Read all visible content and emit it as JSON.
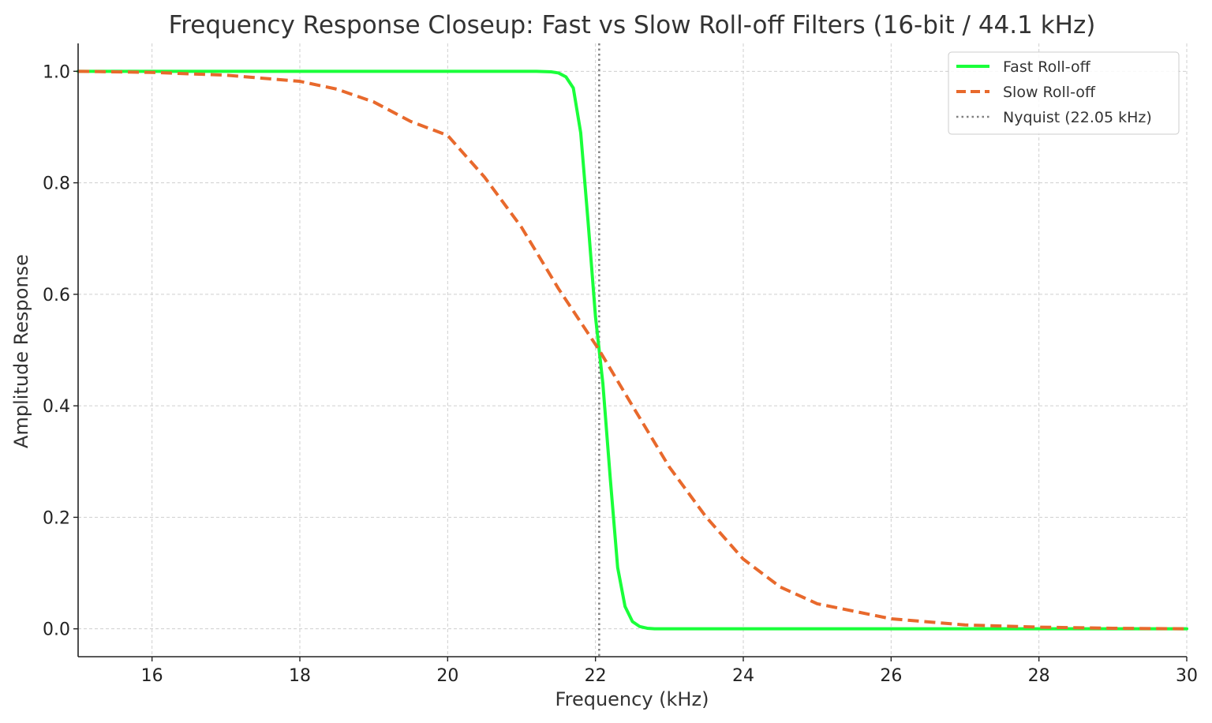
{
  "chart_data": {
    "type": "line",
    "title": "Frequency Response Closeup: Fast vs Slow Roll-off Filters (16-bit / 44.1 kHz)",
    "xlabel": "Frequency (kHz)",
    "ylabel": "Amplitude Response",
    "xlim": [
      15,
      30
    ],
    "ylim": [
      -0.05,
      1.05
    ],
    "xticks": [
      16,
      18,
      20,
      22,
      24,
      26,
      28,
      30
    ],
    "xtick_labels": [
      "16",
      "18",
      "20",
      "22",
      "24",
      "26",
      "28",
      "30"
    ],
    "yticks": [
      0.0,
      0.2,
      0.4,
      0.6,
      0.8,
      1.0
    ],
    "ytick_labels": [
      "0.0",
      "0.2",
      "0.4",
      "0.6",
      "0.8",
      "1.0"
    ],
    "grid": true,
    "legend_position": "top-right",
    "series": [
      {
        "name": "Fast Roll-off",
        "style": "solid",
        "color": "#1aff3a",
        "x": [
          15,
          16,
          17,
          18,
          19,
          20,
          20.5,
          21,
          21.2,
          21.4,
          21.5,
          21.6,
          21.7,
          21.8,
          21.9,
          22.0,
          22.05,
          22.1,
          22.2,
          22.3,
          22.4,
          22.5,
          22.6,
          22.7,
          22.8,
          23,
          24,
          25,
          26,
          27,
          28,
          29,
          30
        ],
        "y": [
          1.0,
          1.0,
          1.0,
          1.0,
          1.0,
          1.0,
          1.0,
          1.0,
          1.0,
          0.999,
          0.997,
          0.99,
          0.97,
          0.89,
          0.73,
          0.56,
          0.5,
          0.44,
          0.27,
          0.11,
          0.04,
          0.013,
          0.004,
          0.001,
          0.0,
          0.0,
          0.0,
          0.0,
          0.0,
          0.0,
          0.0,
          0.0,
          0.0
        ]
      },
      {
        "name": "Slow Roll-off",
        "style": "dashed",
        "color": "#e8692c",
        "x": [
          15,
          16,
          17,
          18,
          18.5,
          19,
          19.5,
          20,
          20.5,
          21,
          21.5,
          22,
          22.05,
          22.5,
          23,
          23.5,
          24,
          24.5,
          25,
          26,
          27,
          28,
          29,
          30
        ],
        "y": [
          1.0,
          0.998,
          0.993,
          0.982,
          0.968,
          0.945,
          0.91,
          0.885,
          0.81,
          0.72,
          0.61,
          0.51,
          0.5,
          0.4,
          0.29,
          0.2,
          0.125,
          0.075,
          0.045,
          0.018,
          0.007,
          0.003,
          0.001,
          0.0
        ]
      },
      {
        "name": "Nyquist (22.05 kHz)",
        "style": "dotted",
        "color": "#808080",
        "x_value": 22.05
      }
    ]
  }
}
